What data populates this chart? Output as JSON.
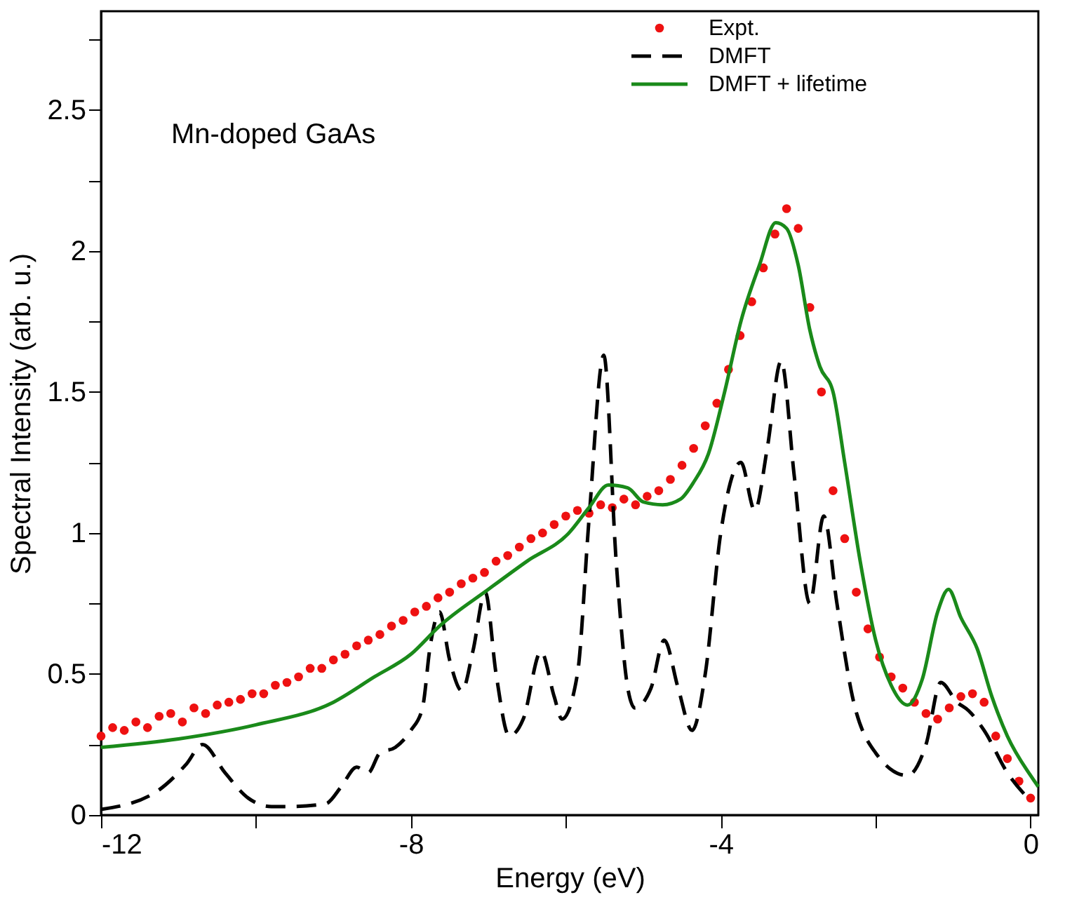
{
  "chart_data": {
    "type": "line",
    "xlabel": "Energy (eV)",
    "ylabel": "Spectral Intensity (arb. u.)",
    "annotations": [
      "Mn-doped GaAs"
    ],
    "xlim": [
      -12,
      0.1
    ],
    "xticks": [
      -12,
      {
        "value": -10,
        "label": null
      },
      -8,
      {
        "value": -6,
        "label": null
      },
      -4,
      {
        "value": -2,
        "label": null
      },
      0
    ],
    "ylim": [
      0,
      2.85
    ],
    "yticks": [
      0,
      {
        "value": 0.25,
        "label": null
      },
      0.5,
      {
        "value": 0.75,
        "label": null
      },
      1,
      {
        "value": 1.25,
        "label": null
      },
      1.5,
      {
        "value": 1.75,
        "label": null
      },
      2,
      {
        "value": 2.25,
        "label": null
      },
      2.5,
      {
        "value": 2.75,
        "label": null
      }
    ],
    "grid": false,
    "legend": "top right",
    "series": [
      {
        "name": "Expt.",
        "type": "scatter",
        "marker": "circle",
        "color": "#ee1111",
        "x": [
          -12.0,
          -11.85,
          -11.7,
          -11.55,
          -11.4,
          -11.25,
          -11.1,
          -10.95,
          -10.8,
          -10.65,
          -10.5,
          -10.35,
          -10.2,
          -10.05,
          -9.9,
          -9.75,
          -9.6,
          -9.45,
          -9.3,
          -9.15,
          -9.0,
          -8.85,
          -8.7,
          -8.55,
          -8.4,
          -8.25,
          -8.1,
          -7.95,
          -7.8,
          -7.65,
          -7.5,
          -7.35,
          -7.2,
          -7.05,
          -6.9,
          -6.75,
          -6.6,
          -6.45,
          -6.3,
          -6.15,
          -6.0,
          -5.85,
          -5.7,
          -5.55,
          -5.4,
          -5.25,
          -5.1,
          -4.95,
          -4.8,
          -4.65,
          -4.5,
          -4.35,
          -4.2,
          -4.05,
          -3.9,
          -3.75,
          -3.6,
          -3.45,
          -3.3,
          -3.15,
          -3.0,
          -2.85,
          -2.7,
          -2.55,
          -2.4,
          -2.25,
          -2.1,
          -1.95,
          -1.8,
          -1.65,
          -1.5,
          -1.35,
          -1.2,
          -1.05,
          -0.9,
          -0.75,
          -0.6,
          -0.45,
          -0.3,
          -0.15,
          0.0
        ],
        "values": [
          0.28,
          0.31,
          0.3,
          0.33,
          0.31,
          0.35,
          0.36,
          0.33,
          0.38,
          0.36,
          0.39,
          0.4,
          0.41,
          0.43,
          0.43,
          0.46,
          0.47,
          0.49,
          0.52,
          0.52,
          0.55,
          0.57,
          0.6,
          0.62,
          0.64,
          0.67,
          0.69,
          0.72,
          0.74,
          0.77,
          0.79,
          0.82,
          0.84,
          0.86,
          0.9,
          0.92,
          0.95,
          0.98,
          1.0,
          1.03,
          1.06,
          1.08,
          1.07,
          1.1,
          1.09,
          1.12,
          1.1,
          1.13,
          1.15,
          1.19,
          1.24,
          1.3,
          1.38,
          1.46,
          1.58,
          1.7,
          1.82,
          1.94,
          2.06,
          2.15,
          2.08,
          1.8,
          1.5,
          1.15,
          0.98,
          0.79,
          0.66,
          0.56,
          0.49,
          0.45,
          0.4,
          0.36,
          0.34,
          0.38,
          0.42,
          0.43,
          0.4,
          0.28,
          0.2,
          0.12,
          0.06
        ]
      },
      {
        "name": "DMFT",
        "line_style": "dashed",
        "color": "#000000",
        "x": [
          -12,
          -11.3,
          -10.9,
          -10.69,
          -10.4,
          -10.1,
          -9.8,
          -9.55,
          -9.1,
          -8.9,
          -8.7,
          -8.55,
          -8.4,
          -8.2,
          -8.0,
          -7.85,
          -7.75,
          -7.63,
          -7.5,
          -7.34,
          -7.2,
          -7.04,
          -6.9,
          -6.73,
          -6.55,
          -6.32,
          -6.15,
          -6.05,
          -5.85,
          -5.7,
          -5.51,
          -5.35,
          -5.2,
          -5.11,
          -4.9,
          -4.73,
          -4.55,
          -4.37,
          -4.2,
          -4.0,
          -3.74,
          -3.56,
          -3.4,
          -3.22,
          -3.05,
          -2.85,
          -2.67,
          -2.5,
          -2.3,
          -2.0,
          -1.59,
          -1.35,
          -1.16,
          -0.95,
          -0.8,
          -0.6,
          -0.3,
          0.0
        ],
        "values": [
          0.02,
          0.08,
          0.18,
          0.25,
          0.15,
          0.06,
          0.03,
          0.03,
          0.04,
          0.1,
          0.17,
          0.15,
          0.22,
          0.24,
          0.3,
          0.38,
          0.6,
          0.72,
          0.55,
          0.44,
          0.58,
          0.79,
          0.5,
          0.28,
          0.34,
          0.58,
          0.42,
          0.34,
          0.5,
          1.05,
          1.63,
          0.9,
          0.45,
          0.38,
          0.45,
          0.62,
          0.45,
          0.3,
          0.5,
          1.0,
          1.25,
          1.08,
          1.3,
          1.61,
          1.2,
          0.75,
          1.06,
          0.75,
          0.42,
          0.22,
          0.14,
          0.25,
          0.47,
          0.4,
          0.37,
          0.3,
          0.15,
          0.05
        ]
      },
      {
        "name": "DMFT + lifetime",
        "line_style": "solid",
        "color": "#1a8a1a",
        "x": [
          -12,
          -11,
          -10,
          -9,
          -8.47,
          -8,
          -7.63,
          -7,
          -6.5,
          -5.96,
          -5.7,
          -5.45,
          -5.2,
          -5.0,
          -4.75,
          -4.52,
          -4.35,
          -4.16,
          -3.95,
          -3.74,
          -3.5,
          -3.29,
          -3.15,
          -3.0,
          -2.85,
          -2.72,
          -2.55,
          -2.4,
          -2.2,
          -2.0,
          -1.8,
          -1.59,
          -1.4,
          -1.2,
          -1.06,
          -0.9,
          -0.69,
          -0.5,
          -0.3,
          0.0,
          0.1
        ],
        "values": [
          0.24,
          0.27,
          0.32,
          0.4,
          0.49,
          0.57,
          0.67,
          0.8,
          0.9,
          1.0,
          1.09,
          1.17,
          1.16,
          1.11,
          1.1,
          1.12,
          1.18,
          1.28,
          1.5,
          1.75,
          1.95,
          2.1,
          2.08,
          1.95,
          1.72,
          1.59,
          1.5,
          1.25,
          0.9,
          0.62,
          0.46,
          0.39,
          0.48,
          0.72,
          0.8,
          0.7,
          0.59,
          0.42,
          0.28,
          0.14,
          0.1
        ]
      }
    ]
  }
}
